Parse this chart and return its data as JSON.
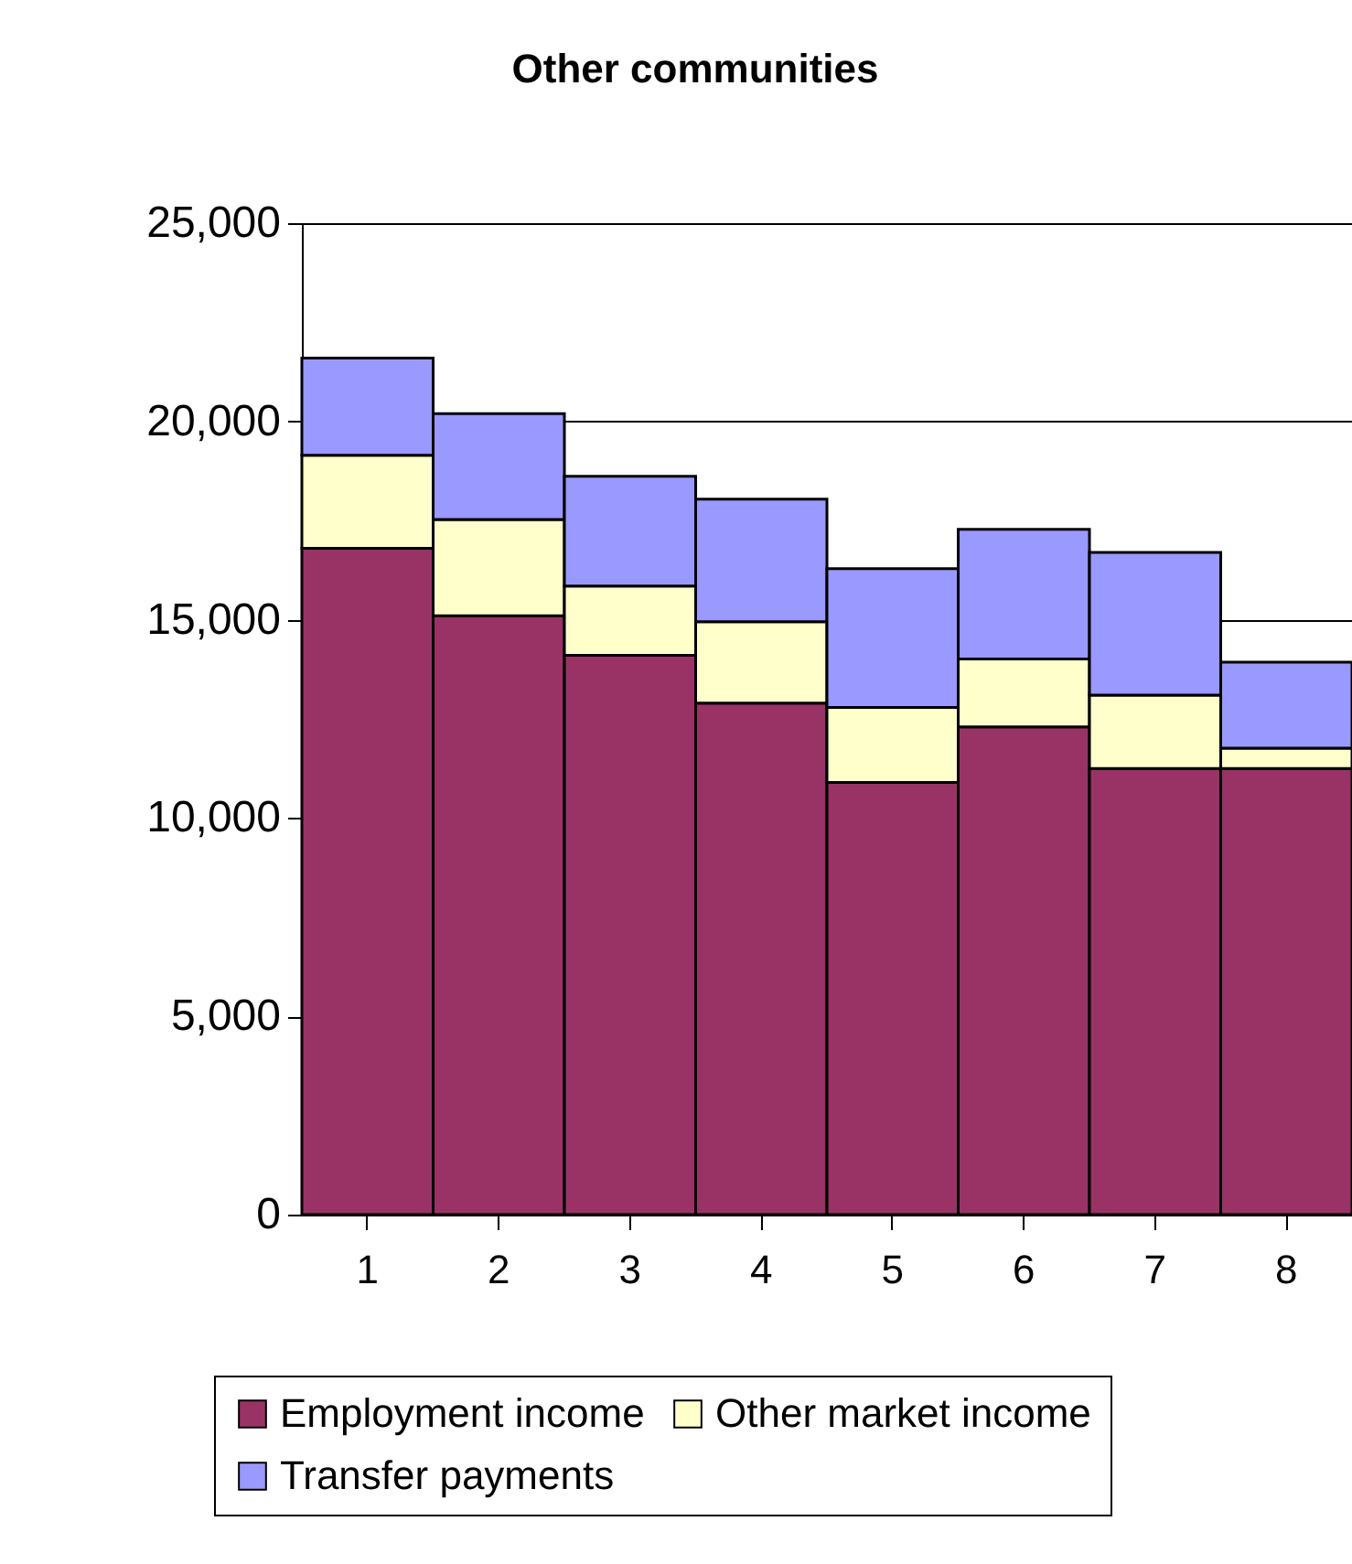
{
  "chart_data": {
    "type": "bar",
    "title": "Other communities",
    "stacked": true,
    "categories": [
      "1",
      "2",
      "3",
      "4",
      "5",
      "6",
      "7",
      "8"
    ],
    "series": [
      {
        "name": "Employment income",
        "color": "#993366",
        "values": [
          16800,
          15100,
          14100,
          12900,
          10900,
          12300,
          11250,
          11250
        ]
      },
      {
        "name": "Other market income",
        "color": "#ffffcc",
        "values": [
          2350,
          2430,
          1750,
          2050,
          1890,
          1710,
          1850,
          510
        ]
      },
      {
        "name": "Transfer payments",
        "color": "#9999ff",
        "values": [
          2450,
          2670,
          2770,
          3090,
          3500,
          3270,
          3600,
          2170
        ]
      }
    ],
    "ylim": [
      0,
      25000
    ],
    "yticks": [
      0,
      {
        "value": 5000,
        "label": "5,000"
      },
      {
        "value": 10000,
        "label": "10,000"
      },
      {
        "value": 15000,
        "label": "15,000"
      },
      {
        "value": 20000,
        "label": "20,000"
      },
      {
        "value": 25000,
        "label": "25,000"
      }
    ],
    "grid": "y",
    "legend": "bottom"
  }
}
